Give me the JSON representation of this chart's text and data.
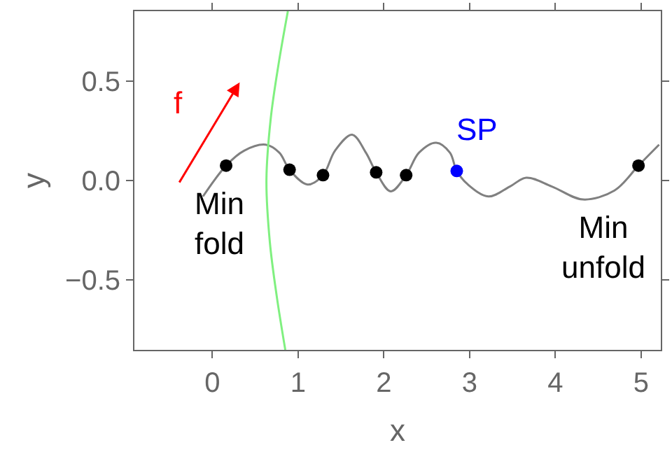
{
  "chart_data": {
    "type": "line",
    "xlabel": "x",
    "ylabel": "y",
    "xlim": [
      -0.91,
      5.23
    ],
    "ylim": [
      -0.85,
      0.85
    ],
    "xticks": [
      0,
      1,
      2,
      3,
      4,
      5
    ],
    "yticks": [
      {
        "value": -0.5,
        "label": "−0.5"
      },
      {
        "value": 0,
        "label": "0.0"
      },
      {
        "value": 0.5,
        "label": "0.5"
      }
    ],
    "series": [
      {
        "color": "#808080",
        "x": [
          -0.11,
          0.16,
          0.37,
          0.62,
          0.78,
          0.9,
          1.11,
          1.29,
          1.43,
          1.63,
          1.79,
          1.91,
          2.08,
          2.26,
          2.41,
          2.61,
          2.77,
          2.85,
          2.98,
          3.22,
          3.47,
          3.66,
          3.96,
          4.32,
          4.69,
          4.97,
          5.21
        ],
        "values": [
          -0.08,
          0.075,
          0.15,
          0.18,
          0.14,
          0.054,
          -0.02,
          0.027,
          0.15,
          0.23,
          0.14,
          0.041,
          -0.054,
          0.027,
          0.14,
          0.19,
          0.14,
          0.048,
          -0.02,
          -0.08,
          -0.03,
          0.014,
          -0.03,
          -0.095,
          -0.05,
          0.075,
          0.18
        ]
      },
      {
        "color": "#80f080",
        "x": [
          0.88,
          0.77,
          0.68,
          0.63,
          0.67,
          0.75,
          0.85
        ],
        "values": [
          0.85,
          0.58,
          0.31,
          0,
          -0.31,
          -0.58,
          -0.85
        ]
      },
      {
        "type": "scatter",
        "color": "#000000",
        "marker": "circle",
        "x": [
          0.16,
          0.9,
          1.29,
          1.91,
          2.26,
          4.97
        ],
        "values": [
          0.075,
          0.054,
          0.027,
          0.041,
          0.027,
          0.075
        ]
      },
      {
        "type": "scatter",
        "color": "#0000ff",
        "marker": "circle",
        "x": [
          2.85
        ],
        "values": [
          0.048
        ]
      }
    ],
    "annotations": [
      "f",
      "SP",
      "Min\nfold",
      "Min\nunfold"
    ]
  }
}
